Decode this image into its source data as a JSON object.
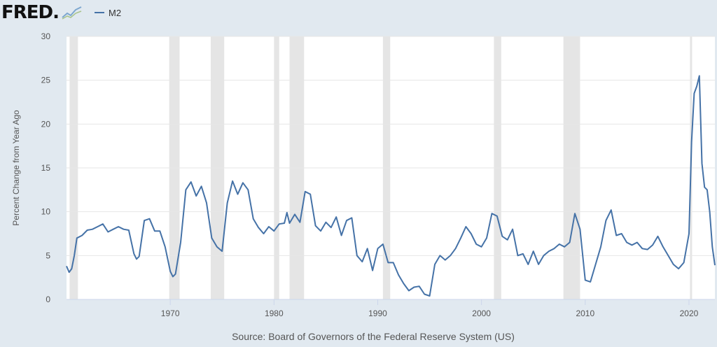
{
  "header": {
    "logo_text": "FRED",
    "logo_registered": "."
  },
  "chart_data": {
    "type": "line",
    "xlabel": "",
    "ylabel": "Percent Change from Year Ago",
    "source": "Source: Board of Governors of the Federal Reserve System (US)",
    "xlim": [
      1960,
      2022.5
    ],
    "ylim": [
      0,
      30
    ],
    "x_ticks": [
      1970,
      1980,
      1990,
      2000,
      2010,
      2020
    ],
    "y_ticks": [
      0,
      5,
      10,
      15,
      20,
      25,
      30
    ],
    "grid": "horizontal",
    "legend_position": "top-left",
    "colors": {
      "line": "#4572a7",
      "recession": "#e5e5e5",
      "plot_bg": "#ffffff",
      "page_bg": "#e1e9f0"
    },
    "recessions": [
      [
        1960.3,
        1961.1
      ],
      [
        1969.9,
        1970.9
      ],
      [
        1973.9,
        1975.2
      ],
      [
        1980.0,
        1980.5
      ],
      [
        1981.5,
        1982.9
      ],
      [
        1990.5,
        1991.2
      ],
      [
        2001.2,
        2001.9
      ],
      [
        2007.9,
        2009.5
      ],
      [
        2020.1,
        2020.3
      ]
    ],
    "series": [
      {
        "name": "M2",
        "x": [
          1960.0,
          1960.25,
          1960.5,
          1960.75,
          1961.0,
          1961.5,
          1962.0,
          1962.5,
          1963.0,
          1963.5,
          1964.0,
          1964.5,
          1965.0,
          1965.5,
          1966.0,
          1966.5,
          1966.75,
          1967.0,
          1967.5,
          1968.0,
          1968.5,
          1969.0,
          1969.5,
          1970.0,
          1970.25,
          1970.5,
          1971.0,
          1971.5,
          1972.0,
          1972.5,
          1973.0,
          1973.5,
          1974.0,
          1974.5,
          1975.0,
          1975.5,
          1976.0,
          1976.5,
          1977.0,
          1977.5,
          1978.0,
          1978.5,
          1979.0,
          1979.5,
          1980.0,
          1980.5,
          1981.0,
          1981.25,
          1981.5,
          1982.0,
          1982.5,
          1983.0,
          1983.5,
          1984.0,
          1984.5,
          1985.0,
          1985.5,
          1986.0,
          1986.5,
          1987.0,
          1987.5,
          1988.0,
          1988.5,
          1989.0,
          1989.5,
          1990.0,
          1990.5,
          1991.0,
          1991.5,
          1992.0,
          1992.5,
          1993.0,
          1993.5,
          1994.0,
          1994.5,
          1995.0,
          1995.5,
          1996.0,
          1996.5,
          1997.0,
          1997.5,
          1998.0,
          1998.5,
          1999.0,
          1999.5,
          2000.0,
          2000.5,
          2001.0,
          2001.5,
          2002.0,
          2002.5,
          2003.0,
          2003.5,
          2004.0,
          2004.5,
          2005.0,
          2005.5,
          2006.0,
          2006.5,
          2007.0,
          2007.5,
          2008.0,
          2008.5,
          2009.0,
          2009.5,
          2010.0,
          2010.5,
          2011.0,
          2011.5,
          2012.0,
          2012.5,
          2013.0,
          2013.5,
          2014.0,
          2014.5,
          2015.0,
          2015.5,
          2016.0,
          2016.5,
          2017.0,
          2017.5,
          2018.0,
          2018.5,
          2019.0,
          2019.5,
          2020.0,
          2020.25,
          2020.5,
          2020.75,
          2021.0,
          2021.25,
          2021.5,
          2021.75,
          2022.0,
          2022.25,
          2022.5
        ],
        "values": [
          3.8,
          3.1,
          3.5,
          5.0,
          7.0,
          7.3,
          7.9,
          8.0,
          8.3,
          8.6,
          7.7,
          8.0,
          8.3,
          8.0,
          7.9,
          5.2,
          4.6,
          4.9,
          9.0,
          9.2,
          7.8,
          7.8,
          6.0,
          3.2,
          2.6,
          2.9,
          6.5,
          12.5,
          13.4,
          11.8,
          12.9,
          11.0,
          7.0,
          6.0,
          5.5,
          11.0,
          13.5,
          12.0,
          13.3,
          12.5,
          9.2,
          8.2,
          7.5,
          8.3,
          7.8,
          8.6,
          8.7,
          9.9,
          8.7,
          9.7,
          8.8,
          12.3,
          12.0,
          8.4,
          7.8,
          8.8,
          8.2,
          9.4,
          7.3,
          9.0,
          9.3,
          5.0,
          4.3,
          5.8,
          3.3,
          5.8,
          6.3,
          4.2,
          4.2,
          2.8,
          1.8,
          1.0,
          1.4,
          1.5,
          0.6,
          0.4,
          4.0,
          5.0,
          4.5,
          5.0,
          5.8,
          7.0,
          8.3,
          7.5,
          6.3,
          6.0,
          7.0,
          9.8,
          9.5,
          7.2,
          6.8,
          8.0,
          5.0,
          5.2,
          4.0,
          5.5,
          4.0,
          5.0,
          5.5,
          5.8,
          6.3,
          6.0,
          6.5,
          9.8,
          8.0,
          2.2,
          2.0,
          4.0,
          6.0,
          9.0,
          10.2,
          7.3,
          7.5,
          6.5,
          6.2,
          6.5,
          5.8,
          5.7,
          6.2,
          7.2,
          6.0,
          5.0,
          4.0,
          3.5,
          4.2,
          7.5,
          18.0,
          23.5,
          24.3,
          25.5,
          15.5,
          12.8,
          12.5,
          10.0,
          6.0,
          3.9
        ]
      }
    ]
  }
}
